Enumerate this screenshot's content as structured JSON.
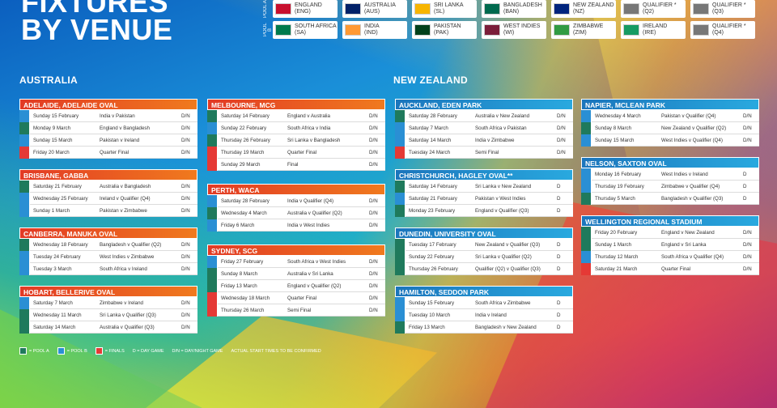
{
  "header": {
    "title_line1": "FIXTURES",
    "title_line2": "BY VENUE"
  },
  "colors": {
    "pool_a": "#1f7a5c",
    "pool_b": "#2a8fd4",
    "finals": "#e53935"
  },
  "pools": {
    "pool_a_label": "POOL A",
    "pool_b_label": "POOL B",
    "pool_a": [
      {
        "line1": "ENGLAND",
        "line2": "(ENG)",
        "flag": "#c8102e",
        "icon": "england-flag-icon"
      },
      {
        "line1": "AUSTRALIA",
        "line2": "(AUS)",
        "flag": "#012169",
        "icon": "australia-flag-icon"
      },
      {
        "line1": "SRI LANKA",
        "line2": "(SL)",
        "flag": "#f7b500",
        "icon": "sri-lanka-flag-icon"
      },
      {
        "line1": "BANGLADESH",
        "line2": "(BAN)",
        "flag": "#006a4e",
        "icon": "bangladesh-flag-icon"
      },
      {
        "line1": "NEW ZEALAND",
        "line2": "(NZ)",
        "flag": "#00247d",
        "icon": "new-zealand-flag-icon"
      },
      {
        "line1": "QUALIFIER *",
        "line2": "(Q2)",
        "flag": "#777777",
        "icon": "qualifier-shield-icon"
      },
      {
        "line1": "QUALIFIER *",
        "line2": "(Q3)",
        "flag": "#777777",
        "icon": "qualifier-shield-icon"
      }
    ],
    "pool_b": [
      {
        "line1": "SOUTH AFRICA",
        "line2": "(SA)",
        "flag": "#007a4d",
        "icon": "south-africa-flag-icon"
      },
      {
        "line1": "INDIA",
        "line2": "(IND)",
        "flag": "#ff9933",
        "icon": "india-flag-icon"
      },
      {
        "line1": "PAKISTAN",
        "line2": "(PAK)",
        "flag": "#01411c",
        "icon": "pakistan-flag-icon"
      },
      {
        "line1": "WEST INDIES",
        "line2": "(WI)",
        "flag": "#7b1e3a",
        "icon": "west-indies-flag-icon"
      },
      {
        "line1": "ZIMBABWE",
        "line2": "(ZIM)",
        "flag": "#319b42",
        "icon": "zimbabwe-flag-icon"
      },
      {
        "line1": "IRELAND",
        "line2": "(IRE)",
        "flag": "#169b62",
        "icon": "ireland-flag-icon"
      },
      {
        "line1": "QUALIFIER *",
        "line2": "(Q4)",
        "flag": "#777777",
        "icon": "qualifier-shield-icon"
      }
    ]
  },
  "regions": {
    "australia": "AUSTRALIA",
    "new_zealand": "NEW ZEALAND"
  },
  "venues": [
    {
      "name": "ADELAIDE, ADELAIDE OVAL",
      "region": "au",
      "rows": [
        {
          "pool": "b",
          "date": "Sunday 15 February",
          "match": "India v Pakistan",
          "type": "D/N"
        },
        {
          "pool": "a",
          "date": "Monday 9 March",
          "match": "England v Bangladesh",
          "type": "D/N"
        },
        {
          "pool": "b",
          "date": "Sunday 15 March",
          "match": "Pakistan v Ireland",
          "type": "D/N"
        },
        {
          "pool": "f",
          "date": "Friday 20 March",
          "match": "Quarter Final",
          "type": "D/N"
        }
      ]
    },
    {
      "name": "BRISBANE, GABBA",
      "region": "au",
      "rows": [
        {
          "pool": "a",
          "date": "Saturday 21 February",
          "match": "Australia v Bangladesh",
          "type": "D/N"
        },
        {
          "pool": "b",
          "date": "Wednesday 25 February",
          "match": "Ireland v Qualifier (Q4)",
          "type": "D/N"
        },
        {
          "pool": "b",
          "date": "Sunday 1 March",
          "match": "Pakistan v Zimbabwe",
          "type": "D/N"
        }
      ]
    },
    {
      "name": "CANBERRA, MANUKA OVAL",
      "region": "au",
      "rows": [
        {
          "pool": "a",
          "date": "Wednesday 18 February",
          "match": "Bangladesh v Qualifier (Q2)",
          "type": "D/N"
        },
        {
          "pool": "b",
          "date": "Tuesday 24 February",
          "match": "West Indies v Zimbabwe",
          "type": "D/N"
        },
        {
          "pool": "b",
          "date": "Tuesday 3 March",
          "match": "South Africa v Ireland",
          "type": "D/N"
        }
      ]
    },
    {
      "name": "HOBART, BELLERIVE OVAL",
      "region": "au",
      "rows": [
        {
          "pool": "b",
          "date": "Saturday 7 March",
          "match": "Zimbabwe v Ireland",
          "type": "D/N"
        },
        {
          "pool": "a",
          "date": "Wednesday 11 March",
          "match": "Sri Lanka v Qualifier (Q3)",
          "type": "D/N"
        },
        {
          "pool": "a",
          "date": "Saturday 14 March",
          "match": "Australia v Qualifier (Q3)",
          "type": "D/N"
        }
      ]
    },
    {
      "name": "MELBOURNE, MCG",
      "region": "au",
      "rows": [
        {
          "pool": "a",
          "date": "Saturday 14 February",
          "match": "England v Australia",
          "type": "D/N"
        },
        {
          "pool": "b",
          "date": "Sunday 22 February",
          "match": "South Africa v India",
          "type": "D/N"
        },
        {
          "pool": "a",
          "date": "Thursday 26 February",
          "match": "Sri Lanka v Bangladesh",
          "type": "D/N"
        },
        {
          "pool": "f",
          "date": "Thursday 19 March",
          "match": "Quarter Final",
          "type": "D/N"
        },
        {
          "pool": "f",
          "date": "Sunday 29 March",
          "match": "Final",
          "type": "D/N"
        }
      ]
    },
    {
      "name": "PERTH, WACA",
      "region": "au",
      "rows": [
        {
          "pool": "b",
          "date": "Saturday 28 February",
          "match": "India v Qualifier (Q4)",
          "type": "D/N"
        },
        {
          "pool": "a",
          "date": "Wednesday 4 March",
          "match": "Australia v Qualifier (Q2)",
          "type": "D/N"
        },
        {
          "pool": "b",
          "date": "Friday 6 March",
          "match": "India v West Indies",
          "type": "D/N"
        }
      ]
    },
    {
      "name": "SYDNEY, SCG",
      "region": "au",
      "rows": [
        {
          "pool": "b",
          "date": "Friday 27 February",
          "match": "South Africa v West Indies",
          "type": "D/N"
        },
        {
          "pool": "a",
          "date": "Sunday 8 March",
          "match": "Australia v Sri Lanka",
          "type": "D/N"
        },
        {
          "pool": "a",
          "date": "Friday 13 March",
          "match": "England v Qualifier (Q2)",
          "type": "D/N"
        },
        {
          "pool": "f",
          "date": "Wednesday 18 March",
          "match": "Quarter Final",
          "type": "D/N"
        },
        {
          "pool": "f",
          "date": "Thursday 26 March",
          "match": "Semi Final",
          "type": "D/N"
        }
      ]
    },
    {
      "name": "AUCKLAND, EDEN PARK",
      "region": "nz",
      "rows": [
        {
          "pool": "a",
          "date": "Saturday 28 February",
          "match": "Australia v New Zealand",
          "type": "D/N"
        },
        {
          "pool": "b",
          "date": "Saturday 7 March",
          "match": "South Africa v Pakistan",
          "type": "D/N"
        },
        {
          "pool": "b",
          "date": "Saturday 14 March",
          "match": "India v Zimbabwe",
          "type": "D/N"
        },
        {
          "pool": "f",
          "date": "Tuesday 24 March",
          "match": "Semi Final",
          "type": "D/N"
        }
      ]
    },
    {
      "name": "CHRISTCHURCH, HAGLEY OVAL**",
      "region": "nz",
      "rows": [
        {
          "pool": "a",
          "date": "Saturday 14 February",
          "match": "Sri Lanka v New Zealand",
          "type": "D"
        },
        {
          "pool": "b",
          "date": "Saturday 21 February",
          "match": "Pakistan v West Indies",
          "type": "D"
        },
        {
          "pool": "a",
          "date": "Monday 23 February",
          "match": "England v Qualifier (Q3)",
          "type": "D"
        }
      ]
    },
    {
      "name": "DUNEDIN, UNIVERSITY OVAL",
      "region": "nz",
      "rows": [
        {
          "pool": "a",
          "date": "Tuesday 17 February",
          "match": "New Zealand v Qualifier (Q3)",
          "type": "D"
        },
        {
          "pool": "a",
          "date": "Sunday 22 February",
          "match": "Sri Lanka v Qualifier (Q2)",
          "type": "D"
        },
        {
          "pool": "a",
          "date": "Thursday 26 February",
          "match": "Qualifier (Q2) v Qualifier (Q3)",
          "type": "D"
        }
      ]
    },
    {
      "name": "HAMILTON, SEDDON PARK",
      "region": "nz",
      "rows": [
        {
          "pool": "b",
          "date": "Sunday 15 February",
          "match": "South Africa v Zimbabwe",
          "type": "D"
        },
        {
          "pool": "b",
          "date": "Tuesday 10 March",
          "match": "India v Ireland",
          "type": "D"
        },
        {
          "pool": "a",
          "date": "Friday 13 March",
          "match": "Bangladesh v New Zealand",
          "type": "D"
        }
      ]
    },
    {
      "name": "NAPIER, MCLEAN PARK",
      "region": "nz",
      "rows": [
        {
          "pool": "b",
          "date": "Wednesday 4 March",
          "match": "Pakistan v Qualifier (Q4)",
          "type": "D/N"
        },
        {
          "pool": "a",
          "date": "Sunday 8 March",
          "match": "New Zealand v Qualifier (Q2)",
          "type": "D/N"
        },
        {
          "pool": "b",
          "date": "Sunday 15 March",
          "match": "West Indies v Qualifier (Q4)",
          "type": "D/N"
        }
      ]
    },
    {
      "name": "NELSON, SAXTON OVAL",
      "region": "nz",
      "rows": [
        {
          "pool": "b",
          "date": "Monday 16 February",
          "match": "West Indies v Ireland",
          "type": "D"
        },
        {
          "pool": "b",
          "date": "Thursday 19 February",
          "match": "Zimbabwe v Qualifier (Q4)",
          "type": "D"
        },
        {
          "pool": "a",
          "date": "Thursday 5 March",
          "match": "Bangladesh v Qualifier (Q3)",
          "type": "D"
        }
      ]
    },
    {
      "name": "WELLINGTON REGIONAL STADIUM",
      "region": "nz",
      "rows": [
        {
          "pool": "a",
          "date": "Friday 20 February",
          "match": "England v New Zealand",
          "type": "D/N"
        },
        {
          "pool": "a",
          "date": "Sunday 1 March",
          "match": "England v Sri Lanka",
          "type": "D/N"
        },
        {
          "pool": "b",
          "date": "Thursday 12 March",
          "match": "South Africa v Qualifier (Q4)",
          "type": "D/N"
        },
        {
          "pool": "f",
          "date": "Saturday 21 March",
          "match": "Quarter Final",
          "type": "D/N"
        }
      ]
    }
  ],
  "legend": {
    "pool_a": "= POOL A",
    "pool_b": "= POOL B",
    "finals": "= FINALS",
    "day_game": "D = DAY GAME",
    "day_night": "D/N = DAY/NIGHT GAME",
    "note": "ACTUAL START TIMES TO BE CONFIRMED"
  }
}
